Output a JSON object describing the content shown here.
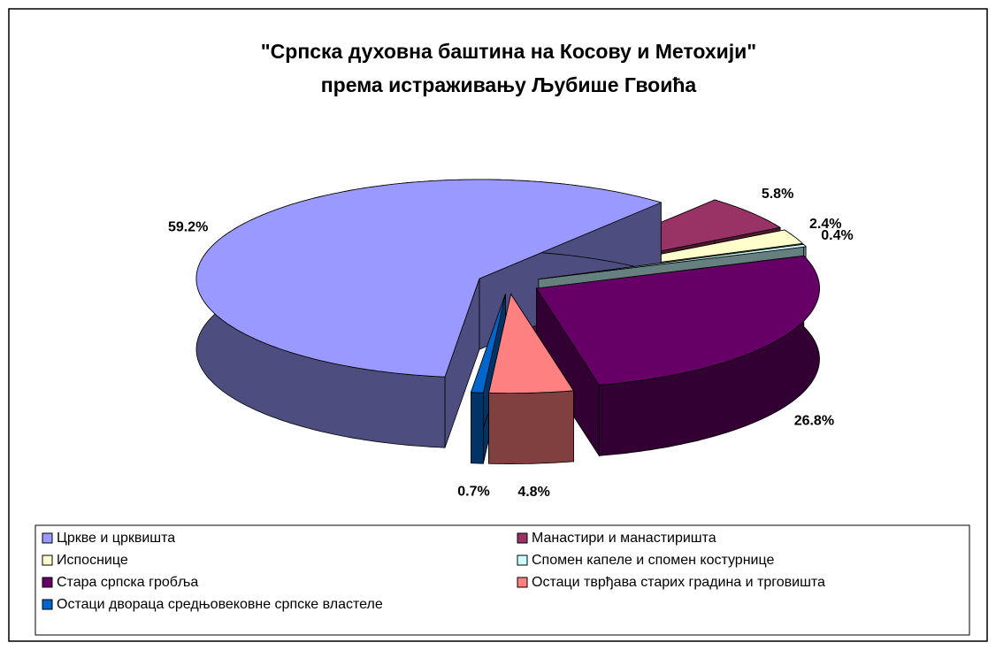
{
  "chart_data": {
    "type": "pie3d",
    "title": [
      "\"Српска духовна баштина на Косову и Метохији\"",
      "према истраживању Љубише Гвоића"
    ],
    "categories": [
      "Цркве и црквишта",
      "Манастири и манастиришта",
      "Испоснице",
      "Спомен капеле и спомен костурнице",
      "Стара српска гробља",
      "Остаци тврђава старих градина и трговишта",
      "Остаци двораца средњовековне српске властеле"
    ],
    "values": [
      59.2,
      5.8,
      2.4,
      0.4,
      26.8,
      4.8,
      0.7
    ],
    "value_labels": [
      "59.2%",
      "5.8%",
      "2.4%",
      "0.4%",
      "26.8%",
      "4.8%",
      "0.7%"
    ],
    "colors": [
      "#9999ff",
      "#993366",
      "#ffffcc",
      "#ccffff",
      "#660066",
      "#ff8080",
      "#0066cc"
    ],
    "legend": "bottom"
  }
}
